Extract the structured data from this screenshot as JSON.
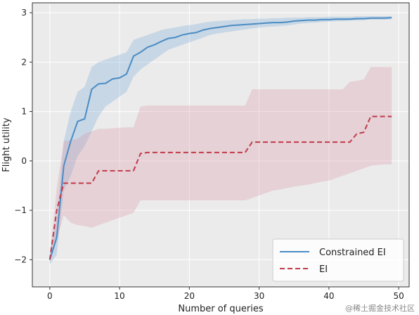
{
  "chart_data": {
    "type": "line",
    "title": "",
    "xlabel": "Number of queries",
    "ylabel": "Flight utility",
    "xlim": [
      -2.5,
      51.5
    ],
    "ylim": [
      -2.55,
      3.2
    ],
    "xticks": [
      0,
      10,
      20,
      30,
      40,
      50
    ],
    "yticks": [
      -2,
      -1,
      0,
      1,
      2,
      3
    ],
    "grid": true,
    "legend_position": "lower-right",
    "x": [
      0,
      1,
      2,
      3,
      4,
      5,
      6,
      7,
      8,
      9,
      10,
      11,
      12,
      13,
      14,
      15,
      16,
      17,
      18,
      19,
      20,
      21,
      22,
      23,
      24,
      25,
      26,
      27,
      28,
      29,
      30,
      31,
      32,
      33,
      34,
      35,
      36,
      37,
      38,
      39,
      40,
      41,
      42,
      43,
      44,
      45,
      46,
      47,
      48,
      49
    ],
    "series": [
      {
        "name": "Constrained EI",
        "color": "#4a8cc4",
        "linestyle": "solid",
        "values": [
          -2.0,
          -1.55,
          -0.1,
          0.4,
          0.8,
          0.85,
          1.45,
          1.56,
          1.57,
          1.66,
          1.68,
          1.76,
          2.12,
          2.2,
          2.3,
          2.35,
          2.42,
          2.48,
          2.5,
          2.55,
          2.58,
          2.6,
          2.65,
          2.68,
          2.7,
          2.72,
          2.74,
          2.75,
          2.76,
          2.77,
          2.78,
          2.79,
          2.8,
          2.8,
          2.81,
          2.83,
          2.84,
          2.85,
          2.85,
          2.86,
          2.86,
          2.87,
          2.87,
          2.87,
          2.88,
          2.88,
          2.89,
          2.89,
          2.89,
          2.9
        ],
        "band_low": [
          -2.1,
          -1.9,
          -0.6,
          -0.3,
          0.1,
          0.3,
          0.6,
          0.9,
          1.1,
          1.2,
          1.3,
          1.4,
          1.7,
          1.85,
          1.95,
          2.05,
          2.15,
          2.25,
          2.3,
          2.35,
          2.4,
          2.45,
          2.5,
          2.55,
          2.58,
          2.6,
          2.62,
          2.64,
          2.66,
          2.68,
          2.7,
          2.71,
          2.72,
          2.73,
          2.74,
          2.76,
          2.78,
          2.79,
          2.8,
          2.81,
          2.82,
          2.83,
          2.83,
          2.84,
          2.84,
          2.85,
          2.86,
          2.86,
          2.86,
          2.87
        ],
        "band_high": [
          -1.85,
          -1.2,
          0.4,
          1.0,
          1.4,
          1.5,
          1.9,
          2.0,
          2.05,
          2.1,
          2.15,
          2.2,
          2.45,
          2.5,
          2.55,
          2.6,
          2.65,
          2.68,
          2.7,
          2.73,
          2.75,
          2.77,
          2.8,
          2.82,
          2.83,
          2.84,
          2.85,
          2.86,
          2.87,
          2.87,
          2.88,
          2.88,
          2.89,
          2.89,
          2.9,
          2.9,
          2.9,
          2.91,
          2.91,
          2.91,
          2.92,
          2.92,
          2.92,
          2.92,
          2.93,
          2.93,
          2.93,
          2.93,
          2.93,
          2.93
        ]
      },
      {
        "name": "EI",
        "color": "#c23a4a",
        "linestyle": "dashed",
        "values": [
          -2.0,
          -1.0,
          -0.45,
          -0.45,
          -0.45,
          -0.45,
          -0.45,
          -0.2,
          -0.2,
          -0.2,
          -0.2,
          -0.2,
          -0.2,
          0.15,
          0.17,
          0.17,
          0.17,
          0.17,
          0.17,
          0.17,
          0.17,
          0.17,
          0.17,
          0.17,
          0.17,
          0.17,
          0.17,
          0.17,
          0.17,
          0.38,
          0.38,
          0.38,
          0.38,
          0.38,
          0.38,
          0.38,
          0.38,
          0.38,
          0.38,
          0.38,
          0.38,
          0.38,
          0.38,
          0.38,
          0.55,
          0.58,
          0.9,
          0.9,
          0.9,
          0.9
        ],
        "band_low": [
          -2.0,
          -1.6,
          -1.1,
          -1.25,
          -1.3,
          -1.32,
          -1.35,
          -1.3,
          -1.25,
          -1.2,
          -1.15,
          -1.1,
          -1.05,
          -0.8,
          -0.8,
          -0.8,
          -0.8,
          -0.8,
          -0.8,
          -0.8,
          -0.8,
          -0.8,
          -0.8,
          -0.8,
          -0.8,
          -0.8,
          -0.8,
          -0.8,
          -0.8,
          -0.75,
          -0.7,
          -0.65,
          -0.6,
          -0.58,
          -0.55,
          -0.52,
          -0.5,
          -0.48,
          -0.45,
          -0.42,
          -0.4,
          -0.35,
          -0.3,
          -0.25,
          -0.2,
          -0.15,
          -0.1,
          -0.08,
          -0.07,
          -0.07
        ],
        "band_high": [
          -1.95,
          -0.55,
          0.4,
          0.42,
          0.45,
          0.55,
          0.6,
          0.65,
          0.65,
          0.66,
          0.67,
          0.68,
          0.68,
          1.1,
          1.12,
          1.12,
          1.12,
          1.12,
          1.12,
          1.12,
          1.12,
          1.12,
          1.12,
          1.12,
          1.12,
          1.12,
          1.12,
          1.12,
          1.12,
          1.45,
          1.45,
          1.45,
          1.45,
          1.45,
          1.45,
          1.45,
          1.45,
          1.45,
          1.45,
          1.45,
          1.45,
          1.45,
          1.45,
          1.6,
          1.62,
          1.65,
          1.9,
          1.9,
          1.9,
          1.9
        ]
      }
    ]
  },
  "watermark": "@稀土掘金技术社区",
  "colors": {
    "axes_background": "#ebebeb",
    "grid": "#ffffff",
    "frame": "#333333"
  }
}
